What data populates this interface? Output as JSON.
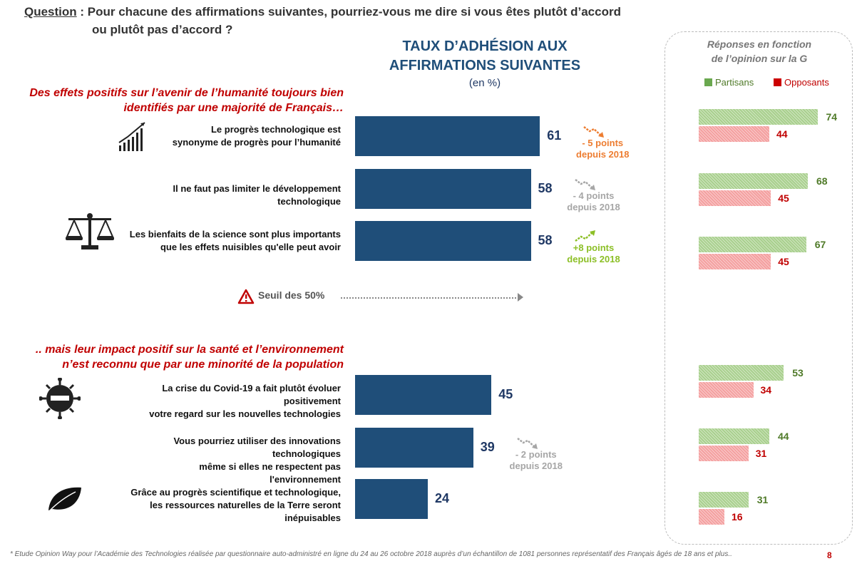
{
  "question": {
    "label": "Question",
    "text1": " : Pour chacune des affirmations suivantes, pourriez-vous me dire si vous êtes plutôt d’accord",
    "text2": "ou plutôt pas d’accord ?"
  },
  "chart_title": {
    "line1": "TAUX D’ADHÉSION AUX",
    "line2": "AFFIRMATIONS SUIVANTES",
    "unit": "(en %)"
  },
  "sections": {
    "positive": {
      "line1": "Des effets positifs sur l’avenir de l’humanité toujours bien",
      "line2": "identifiés par une majorité de Français…"
    },
    "negative": {
      "line1": ".. mais leur impact positif sur la santé et l’environnement",
      "line2": "n’est reconnu que par une minorité de la population"
    }
  },
  "threshold": {
    "label": "Seuil des 50%"
  },
  "panel": {
    "title1": "Réponses en fonction",
    "title2": "de l’opinion sur la  G",
    "legend_partisans": "Partisans",
    "legend_opposants": "Opposants"
  },
  "colors": {
    "bar": "#1f4e79",
    "partisans": "#a9d08e",
    "opposants": "#f4a0a0",
    "accent_red": "#c00000"
  },
  "chart_data": {
    "type": "bar",
    "orientation": "horizontal",
    "unit": "%",
    "categories": [
      "Le progrès technologique est synonyme de progrès pour l’humanité",
      "Il ne faut pas limiter le développement technologique",
      "Les bienfaits de la science sont plus importants que les effets nuisibles qu'elle peut avoir",
      "La crise du Covid-19 a fait plutôt évoluer positivement votre regard sur les nouvelles technologies",
      "Vous pourriez utiliser des innovations technologiques même si elles ne respectent pas l'environnement",
      "Grâce au progrès scientifique et technologique, les ressources naturelles de la Terre seront inépuisables"
    ],
    "statements": [
      {
        "line1": "Le progrès technologique est",
        "line2": "synonyme de progrès pour l’humanité"
      },
      {
        "line1": "Il ne faut pas limiter le développement technologique",
        "line2": ""
      },
      {
        "line1": "Les bienfaits de la science sont plus importants",
        "line2": "que les effets nuisibles qu'elle peut avoir"
      },
      {
        "line1": "La crise du Covid-19 a fait plutôt évoluer positivement",
        "line2": "votre regard sur les nouvelles technologies"
      },
      {
        "line1": "Vous pourriez utiliser des innovations technologiques",
        "line2": "même si elles ne respectent pas l'environnement"
      },
      {
        "line1": "Grâce au progrès scientifique et technologique,",
        "line2": "les ressources naturelles de la Terre seront inépuisables"
      }
    ],
    "values": [
      61,
      58,
      58,
      45,
      39,
      24
    ],
    "evolutions": [
      {
        "line1": "- 5 points",
        "line2": "depuis 2018",
        "trend": "down-orange"
      },
      {
        "line1": "- 4 points",
        "line2": "depuis 2018",
        "trend": "down-grey"
      },
      {
        "line1": "+8 points",
        "line2": "depuis 2018",
        "trend": "up-green"
      },
      null,
      {
        "line1": "- 2 points",
        "line2": "depuis 2018",
        "trend": "down-grey"
      },
      null
    ],
    "threshold": 50,
    "series_panel": [
      {
        "name": "Partisans",
        "values": [
          74,
          68,
          67,
          53,
          44,
          31
        ]
      },
      {
        "name": "Opposants",
        "values": [
          44,
          45,
          45,
          34,
          31,
          16
        ]
      }
    ]
  },
  "footnote": "* Etude Opinion Way pour l’Académie des Technologies réalisée par questionnaire auto-administré en ligne du 24 au 26 octobre 2018 auprès d’un échantillon de 1081 personnes représentatif des Français âgés de 18 ans et plus..",
  "page_number": "8"
}
